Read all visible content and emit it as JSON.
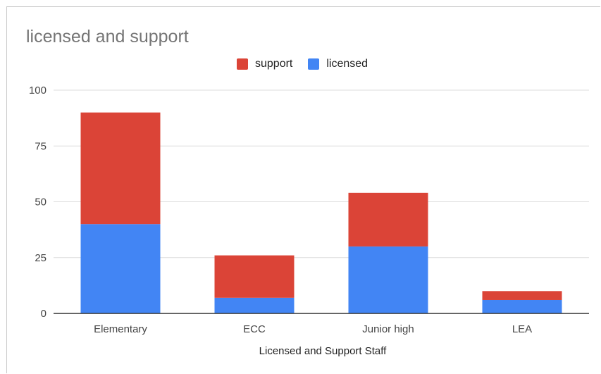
{
  "chart_data": {
    "type": "bar",
    "stacked": true,
    "title": "licensed and support",
    "xlabel": "Licensed and Support Staff",
    "ylabel": "",
    "categories": [
      "Elementary",
      "ECC",
      "Junior high",
      "LEA"
    ],
    "series": [
      {
        "name": "licensed",
        "color": "#4285f4",
        "values": [
          40,
          7,
          30,
          6
        ]
      },
      {
        "name": "support",
        "color": "#db4437",
        "values": [
          50,
          19,
          24,
          4
        ]
      }
    ],
    "legend_order": [
      "support",
      "licensed"
    ],
    "ylim": [
      0,
      100
    ],
    "yticks": [
      0,
      25,
      50,
      75,
      100
    ],
    "grid": true,
    "legend_position": "top"
  },
  "colors": {
    "licensed": "#4285f4",
    "support": "#db4437",
    "grid": "#dcdcdc",
    "axis_text": "#444444"
  }
}
